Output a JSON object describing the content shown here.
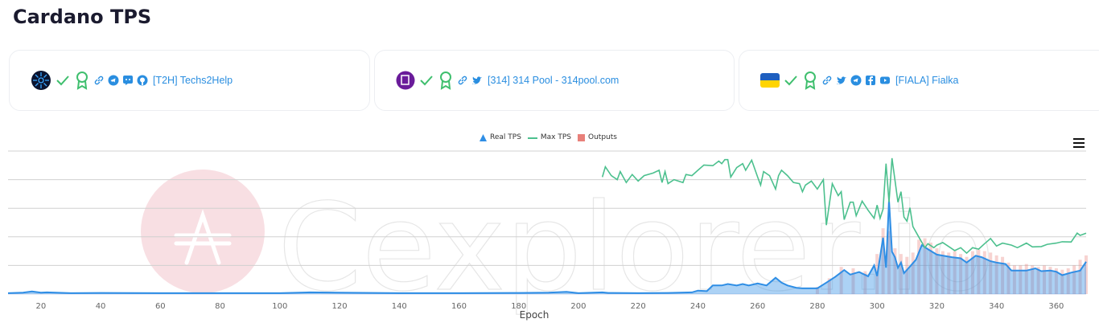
{
  "page": {
    "title": "Cardano TPS"
  },
  "pools": [
    {
      "name": "[T2H] Techs2Help",
      "avatar": "t2h-logo",
      "icons": [
        "check-icon",
        "award-icon",
        "link-icon",
        "telegram-icon",
        "discord-icon",
        "github-icon"
      ]
    },
    {
      "name": "[314] 314 Pool - 314pool.com",
      "avatar": "314-logo",
      "icons": [
        "check-icon",
        "award-icon",
        "link-icon",
        "twitter-icon"
      ]
    },
    {
      "name": "[FIALA] Fialka",
      "avatar": "ukraine-flag",
      "icons": [
        "check-icon",
        "award-icon",
        "link-icon",
        "twitter-icon",
        "telegram-icon",
        "facebook-icon",
        "youtube-icon"
      ]
    }
  ],
  "colors": {
    "real_tps": "#2f8ee5",
    "max_tps": "#4cc08e",
    "outputs": "#e8807a",
    "link": "#2a8ee0",
    "verified": "#3fbf6e"
  },
  "watermark": "Cexplorer.io",
  "chart_data": {
    "type": "line",
    "xlabel": "Epoch",
    "ylabel": "",
    "xlim": [
      9,
      370
    ],
    "ylim": [
      0,
      5
    ],
    "y_tick_labels_shown": false,
    "grid": true,
    "legend_placement": "top-center",
    "x_ticks": [
      20,
      40,
      60,
      80,
      100,
      120,
      140,
      160,
      180,
      200,
      220,
      240,
      260,
      280,
      300,
      320,
      340,
      360
    ],
    "series": [
      {
        "name": "Real TPS",
        "style": "area",
        "points": [
          [
            9,
            0.03
          ],
          [
            14,
            0.05
          ],
          [
            17,
            0.09
          ],
          [
            20,
            0.05
          ],
          [
            22,
            0.06
          ],
          [
            30,
            0.03
          ],
          [
            40,
            0.04
          ],
          [
            60,
            0.03
          ],
          [
            80,
            0.03
          ],
          [
            100,
            0.03
          ],
          [
            110,
            0.06
          ],
          [
            120,
            0.05
          ],
          [
            140,
            0.03
          ],
          [
            160,
            0.03
          ],
          [
            180,
            0.04
          ],
          [
            190,
            0.05
          ],
          [
            196,
            0.08
          ],
          [
            200,
            0.03
          ],
          [
            205,
            0.05
          ],
          [
            208,
            0.06
          ],
          [
            210,
            0.04
          ],
          [
            220,
            0.03
          ],
          [
            230,
            0.04
          ],
          [
            238,
            0.06
          ],
          [
            240,
            0.12
          ],
          [
            243,
            0.1
          ],
          [
            245,
            0.3
          ],
          [
            248,
            0.3
          ],
          [
            250,
            0.35
          ],
          [
            253,
            0.3
          ],
          [
            255,
            0.35
          ],
          [
            257,
            0.3
          ],
          [
            260,
            0.37
          ],
          [
            263,
            0.3
          ],
          [
            266,
            0.57
          ],
          [
            268,
            0.4
          ],
          [
            270,
            0.3
          ],
          [
            273,
            0.22
          ],
          [
            275,
            0.2
          ],
          [
            280,
            0.2
          ],
          [
            283,
            0.4
          ],
          [
            286,
            0.6
          ],
          [
            289,
            0.84
          ],
          [
            291,
            0.68
          ],
          [
            294,
            0.77
          ],
          [
            297,
            0.62
          ],
          [
            299,
            1.0
          ],
          [
            300,
            0.63
          ],
          [
            302,
            1.97
          ],
          [
            303,
            0.92
          ],
          [
            304,
            3.28
          ],
          [
            305,
            1.48
          ],
          [
            306,
            1.29
          ],
          [
            307,
            0.92
          ],
          [
            308,
            1.1
          ],
          [
            309,
            0.73
          ],
          [
            311,
            0.96
          ],
          [
            313,
            1.2
          ],
          [
            315,
            1.71
          ],
          [
            317,
            1.57
          ],
          [
            320,
            1.38
          ],
          [
            325,
            1.29
          ],
          [
            328,
            1.25
          ],
          [
            330,
            1.1
          ],
          [
            333,
            1.34
          ],
          [
            335,
            1.29
          ],
          [
            338,
            1.15
          ],
          [
            340,
            1.1
          ],
          [
            343,
            1.05
          ],
          [
            345,
            0.82
          ],
          [
            350,
            0.82
          ],
          [
            353,
            0.9
          ],
          [
            355,
            0.8
          ],
          [
            358,
            0.82
          ],
          [
            360,
            0.78
          ],
          [
            362,
            0.66
          ],
          [
            365,
            0.75
          ],
          [
            368,
            0.82
          ],
          [
            370,
            1.13
          ]
        ]
      },
      {
        "name": "Max TPS",
        "style": "line",
        "points": [
          [
            208,
            4.09
          ],
          [
            209,
            4.45
          ],
          [
            211,
            4.14
          ],
          [
            213,
            4.0
          ],
          [
            214,
            4.28
          ],
          [
            216,
            3.9
          ],
          [
            218,
            4.18
          ],
          [
            220,
            3.95
          ],
          [
            222,
            4.14
          ],
          [
            225,
            4.23
          ],
          [
            227,
            4.33
          ],
          [
            228,
            3.9
          ],
          [
            229,
            4.28
          ],
          [
            230,
            3.86
          ],
          [
            232,
            4.0
          ],
          [
            235,
            3.9
          ],
          [
            236,
            4.18
          ],
          [
            238,
            4.14
          ],
          [
            240,
            4.33
          ],
          [
            242,
            4.51
          ],
          [
            245,
            4.49
          ],
          [
            247,
            4.65
          ],
          [
            248,
            4.56
          ],
          [
            249,
            4.7
          ],
          [
            250,
            4.7
          ],
          [
            251,
            4.09
          ],
          [
            253,
            4.42
          ],
          [
            255,
            4.56
          ],
          [
            256,
            4.33
          ],
          [
            258,
            4.68
          ],
          [
            260,
            4.09
          ],
          [
            261,
            3.81
          ],
          [
            262,
            4.28
          ],
          [
            264,
            4.14
          ],
          [
            266,
            3.67
          ],
          [
            267,
            4.14
          ],
          [
            268,
            4.33
          ],
          [
            270,
            4.14
          ],
          [
            272,
            3.9
          ],
          [
            274,
            3.86
          ],
          [
            275,
            3.58
          ],
          [
            276,
            3.81
          ],
          [
            278,
            3.95
          ],
          [
            280,
            3.67
          ],
          [
            282,
            4.0
          ],
          [
            283,
            2.41
          ],
          [
            285,
            3.86
          ],
          [
            287,
            3.44
          ],
          [
            288,
            3.58
          ],
          [
            289,
            2.6
          ],
          [
            291,
            3.21
          ],
          [
            292,
            3.21
          ],
          [
            293,
            2.74
          ],
          [
            295,
            3.25
          ],
          [
            297,
            2.93
          ],
          [
            299,
            2.65
          ],
          [
            300,
            3.11
          ],
          [
            301,
            2.65
          ],
          [
            302,
            2.97
          ],
          [
            303,
            4.56
          ],
          [
            304,
            3.21
          ],
          [
            305,
            4.75
          ],
          [
            307,
            3.21
          ],
          [
            308,
            3.58
          ],
          [
            309,
            2.69
          ],
          [
            310,
            2.55
          ],
          [
            311,
            3.02
          ],
          [
            312,
            2.36
          ],
          [
            314,
            1.99
          ],
          [
            316,
            1.62
          ],
          [
            317,
            1.76
          ],
          [
            319,
            1.62
          ],
          [
            320,
            1.71
          ],
          [
            322,
            1.8
          ],
          [
            324,
            1.66
          ],
          [
            326,
            1.52
          ],
          [
            328,
            1.62
          ],
          [
            330,
            1.43
          ],
          [
            332,
            1.62
          ],
          [
            334,
            1.57
          ],
          [
            336,
            1.76
          ],
          [
            338,
            1.94
          ],
          [
            340,
            1.68
          ],
          [
            342,
            1.78
          ],
          [
            345,
            1.71
          ],
          [
            347,
            1.62
          ],
          [
            350,
            1.78
          ],
          [
            352,
            1.65
          ],
          [
            355,
            1.66
          ],
          [
            357,
            1.74
          ],
          [
            360,
            1.78
          ],
          [
            362,
            1.83
          ],
          [
            365,
            1.82
          ],
          [
            367,
            2.13
          ],
          [
            368,
            2.05
          ],
          [
            370,
            2.13
          ]
        ]
      },
      {
        "name": "Outputs",
        "style": "column",
        "points": [
          [
            280,
            0.25
          ],
          [
            284,
            0.55
          ],
          [
            288,
            0.95
          ],
          [
            292,
            0.9
          ],
          [
            296,
            0.8
          ],
          [
            300,
            1.4
          ],
          [
            302,
            2.3
          ],
          [
            304,
            2.2
          ],
          [
            306,
            1.6
          ],
          [
            308,
            1.4
          ],
          [
            310,
            1.3
          ],
          [
            312,
            1.45
          ],
          [
            314,
            1.9
          ],
          [
            316,
            1.95
          ],
          [
            318,
            1.8
          ],
          [
            320,
            1.6
          ],
          [
            322,
            1.5
          ],
          [
            324,
            1.45
          ],
          [
            326,
            1.5
          ],
          [
            328,
            1.4
          ],
          [
            330,
            1.3
          ],
          [
            332,
            1.5
          ],
          [
            334,
            1.55
          ],
          [
            336,
            1.5
          ],
          [
            338,
            1.45
          ],
          [
            340,
            1.35
          ],
          [
            342,
            1.3
          ],
          [
            344,
            1.1
          ],
          [
            346,
            1.0
          ],
          [
            348,
            1.0
          ],
          [
            350,
            1.05
          ],
          [
            352,
            1.0
          ],
          [
            354,
            0.95
          ],
          [
            356,
            1.0
          ],
          [
            358,
            0.95
          ],
          [
            360,
            0.9
          ],
          [
            362,
            0.85
          ],
          [
            364,
            0.9
          ],
          [
            366,
            1.0
          ],
          [
            368,
            1.2
          ],
          [
            370,
            1.35
          ]
        ]
      }
    ]
  }
}
